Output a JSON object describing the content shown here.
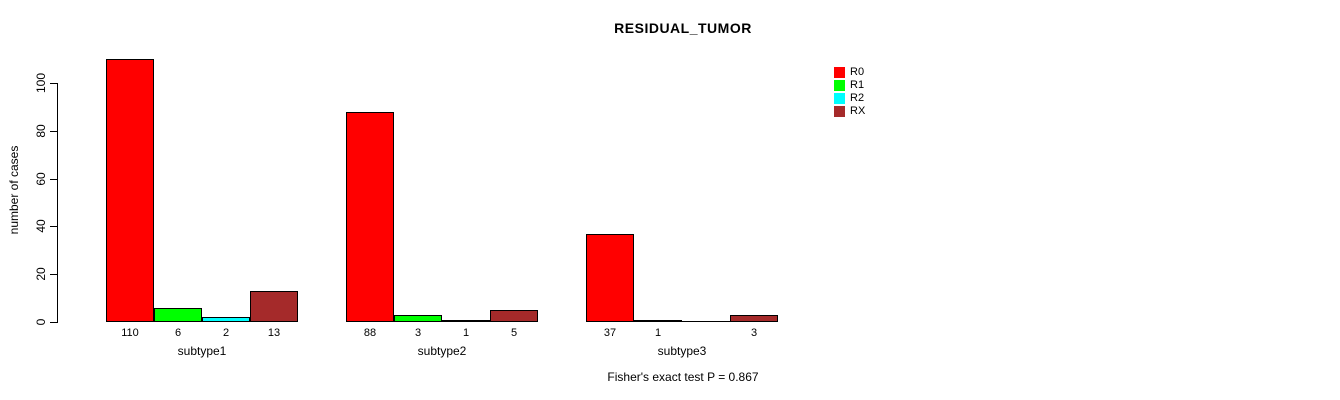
{
  "title": "RESIDUAL_TUMOR",
  "footnote": "Fisher's exact test P = 0.867",
  "ylabel": "number of cases",
  "chart_data": {
    "type": "bar",
    "title": "RESIDUAL_TUMOR",
    "ylabel": "number of cases",
    "xlabel": "",
    "categories": [
      "subtype1",
      "subtype2",
      "subtype3"
    ],
    "series": [
      {
        "name": "R0",
        "color": "#FF0000",
        "values": [
          110,
          88,
          37
        ]
      },
      {
        "name": "R1",
        "color": "#00FF00",
        "values": [
          6,
          3,
          1
        ]
      },
      {
        "name": "R2",
        "color": "#00FFFF",
        "values": [
          2,
          1,
          0
        ]
      },
      {
        "name": "RX",
        "color": "#A52A2A",
        "values": [
          13,
          5,
          3
        ]
      }
    ],
    "value_labels": [
      [
        "110",
        "6",
        "2",
        "13"
      ],
      [
        "88",
        "3",
        "1",
        "5"
      ],
      [
        "37",
        "1",
        "",
        "3"
      ]
    ],
    "yticks": [
      0,
      20,
      40,
      60,
      80,
      100
    ],
    "ylim": [
      0,
      115
    ],
    "grid": false,
    "legend_position": "right",
    "annotation": "Fisher's exact test P = 0.867"
  }
}
